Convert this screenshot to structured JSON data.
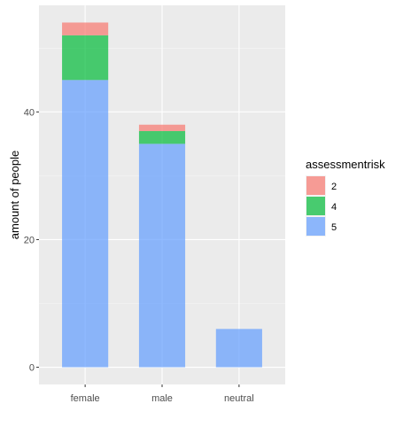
{
  "chart_data": {
    "type": "bar",
    "stacked": true,
    "categories": [
      "female",
      "male",
      "neutral"
    ],
    "series": [
      {
        "name": "5",
        "values": [
          45,
          35,
          6
        ],
        "color": "#619CFF"
      },
      {
        "name": "4",
        "values": [
          7,
          2,
          0
        ],
        "color": "#00BA38"
      },
      {
        "name": "2",
        "values": [
          2,
          1,
          0
        ],
        "color": "#F8766D"
      }
    ],
    "opacity": 0.7,
    "ylabel": "amount of people",
    "xlabel": "",
    "yticks": [
      0,
      20,
      40
    ],
    "ylim": [
      -2.7,
      56.7
    ],
    "grid": true,
    "panel_background": "#EBEBEB",
    "legend": {
      "title": "assessmentrisk",
      "position": "right",
      "entries": [
        {
          "label": "2",
          "color": "#F8766D"
        },
        {
          "label": "4",
          "color": "#00BA38"
        },
        {
          "label": "5",
          "color": "#619CFF"
        }
      ]
    }
  }
}
